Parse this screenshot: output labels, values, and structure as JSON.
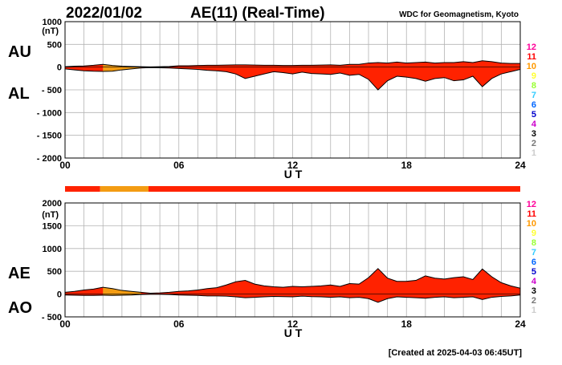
{
  "header": {
    "date": "2022/01/02",
    "title": "AE(11) (Real-Time)",
    "source": "WDC for Geomagnetism, Kyoto"
  },
  "footer": {
    "created": "[Created at 2025-04-03 06:45UT]"
  },
  "legend": {
    "stations": [
      {
        "label": "12",
        "color": "#ff0099"
      },
      {
        "label": "11",
        "color": "#ff0000"
      },
      {
        "label": "10",
        "color": "#ff9900"
      },
      {
        "label": "9",
        "color": "#ffff33"
      },
      {
        "label": "8",
        "color": "#99ff33"
      },
      {
        "label": "7",
        "color": "#33ccff"
      },
      {
        "label": "6",
        "color": "#0066ff"
      },
      {
        "label": "5",
        "color": "#0000cc"
      },
      {
        "label": "4",
        "color": "#cc00cc"
      },
      {
        "label": "3",
        "color": "#000000"
      },
      {
        "label": "2",
        "color": "#777777"
      },
      {
        "label": "1",
        "color": "#cccccc"
      }
    ]
  },
  "colors": {
    "fill_main": "#ff2200",
    "fill_low": "#f39c12",
    "outline": "#000000",
    "grid": "#b3b3b3"
  },
  "status_bar": {
    "segments": [
      {
        "from": 0,
        "to": 1.85,
        "color": "#ff2200"
      },
      {
        "from": 1.85,
        "to": 4.4,
        "color": "#f39c12"
      },
      {
        "from": 4.4,
        "to": 24,
        "color": "#ff2200"
      }
    ]
  },
  "chart_data": [
    {
      "type": "area",
      "series": [
        {
          "name": "AU"
        },
        {
          "name": "AL"
        }
      ],
      "side_labels": [
        "AU",
        "AL"
      ],
      "ylabel": "(nT)",
      "xlabel": "U T",
      "ylim": [
        -2000,
        1000
      ],
      "yticks": [
        1000,
        500,
        0,
        -500,
        -1000,
        -1500,
        -2000
      ],
      "ytick_labels": [
        "1000",
        "500",
        "0",
        "- 500",
        "- 1000",
        "- 1500",
        "- 2000"
      ],
      "xlim": [
        0,
        24
      ],
      "xticks": [
        0,
        6,
        12,
        18,
        24
      ],
      "xtick_labels": [
        "00",
        "06",
        "12",
        "18",
        "24"
      ],
      "grid": true,
      "x": [
        0,
        0.5,
        1,
        1.5,
        2,
        2.5,
        3,
        3.5,
        4,
        4.5,
        5,
        5.5,
        6,
        6.5,
        7,
        7.5,
        8,
        8.5,
        9,
        9.5,
        10,
        10.5,
        11,
        11.5,
        12,
        12.5,
        13,
        13.5,
        14,
        14.5,
        15,
        15.5,
        16,
        16.5,
        17,
        17.5,
        18,
        18.5,
        19,
        19.5,
        20,
        20.5,
        21,
        21.5,
        22,
        22.5,
        23,
        23.5,
        24
      ],
      "upper": [
        10,
        20,
        25,
        40,
        60,
        35,
        20,
        15,
        10,
        5,
        10,
        15,
        30,
        30,
        35,
        40,
        40,
        45,
        50,
        50,
        45,
        40,
        40,
        35,
        35,
        40,
        40,
        45,
        50,
        40,
        60,
        60,
        90,
        100,
        90,
        110,
        90,
        100,
        110,
        90,
        100,
        100,
        120,
        100,
        140,
        120,
        90,
        80,
        80
      ],
      "lower": [
        -40,
        -60,
        -80,
        -90,
        -95,
        -90,
        -60,
        -40,
        -20,
        -10,
        -15,
        -20,
        -30,
        -40,
        -50,
        -70,
        -80,
        -100,
        -150,
        -250,
        -200,
        -150,
        -100,
        -120,
        -150,
        -110,
        -140,
        -150,
        -160,
        -130,
        -180,
        -160,
        -270,
        -500,
        -300,
        -200,
        -220,
        -250,
        -310,
        -250,
        -230,
        -300,
        -280,
        -200,
        -430,
        -250,
        -150,
        -100,
        -50
      ]
    },
    {
      "type": "area",
      "series": [
        {
          "name": "AE"
        },
        {
          "name": "AO"
        }
      ],
      "side_labels": [
        "AE",
        "AO"
      ],
      "ylabel": "(nT)",
      "xlabel": "U T",
      "ylim": [
        -500,
        2000
      ],
      "yticks": [
        2000,
        1500,
        1000,
        500,
        0,
        -500
      ],
      "ytick_labels": [
        "2000",
        "1500",
        "1000",
        "500",
        "0",
        "- 500"
      ],
      "xlim": [
        0,
        24
      ],
      "xticks": [
        0,
        6,
        12,
        18,
        24
      ],
      "xtick_labels": [
        "00",
        "06",
        "12",
        "18",
        "24"
      ],
      "grid": true,
      "x": [
        0,
        0.5,
        1,
        1.5,
        2,
        2.5,
        3,
        3.5,
        4,
        4.5,
        5,
        5.5,
        6,
        6.5,
        7,
        7.5,
        8,
        8.5,
        9,
        9.5,
        10,
        10.5,
        11,
        11.5,
        12,
        12.5,
        13,
        13.5,
        14,
        14.5,
        15,
        15.5,
        16,
        16.5,
        17,
        17.5,
        18,
        18.5,
        19,
        19.5,
        20,
        20.5,
        21,
        21.5,
        22,
        22.5,
        23,
        23.5,
        24
      ],
      "upper": [
        40,
        60,
        90,
        110,
        150,
        120,
        80,
        60,
        40,
        20,
        25,
        40,
        60,
        70,
        90,
        120,
        140,
        200,
        270,
        300,
        220,
        180,
        160,
        150,
        170,
        160,
        170,
        180,
        200,
        170,
        230,
        220,
        360,
        560,
        350,
        280,
        280,
        300,
        400,
        350,
        330,
        360,
        380,
        320,
        550,
        380,
        250,
        180,
        130
      ],
      "lower": [
        -20,
        -25,
        -30,
        -30,
        -25,
        -30,
        -25,
        -20,
        -10,
        -5,
        -5,
        -10,
        -20,
        -25,
        -30,
        -40,
        -40,
        -45,
        -60,
        -80,
        -70,
        -60,
        -50,
        -55,
        -60,
        -45,
        -55,
        -60,
        -70,
        -60,
        -80,
        -70,
        -100,
        -180,
        -100,
        -60,
        -70,
        -80,
        -90,
        -70,
        -60,
        -80,
        -70,
        -60,
        -120,
        -70,
        -50,
        -40,
        -20
      ]
    }
  ]
}
